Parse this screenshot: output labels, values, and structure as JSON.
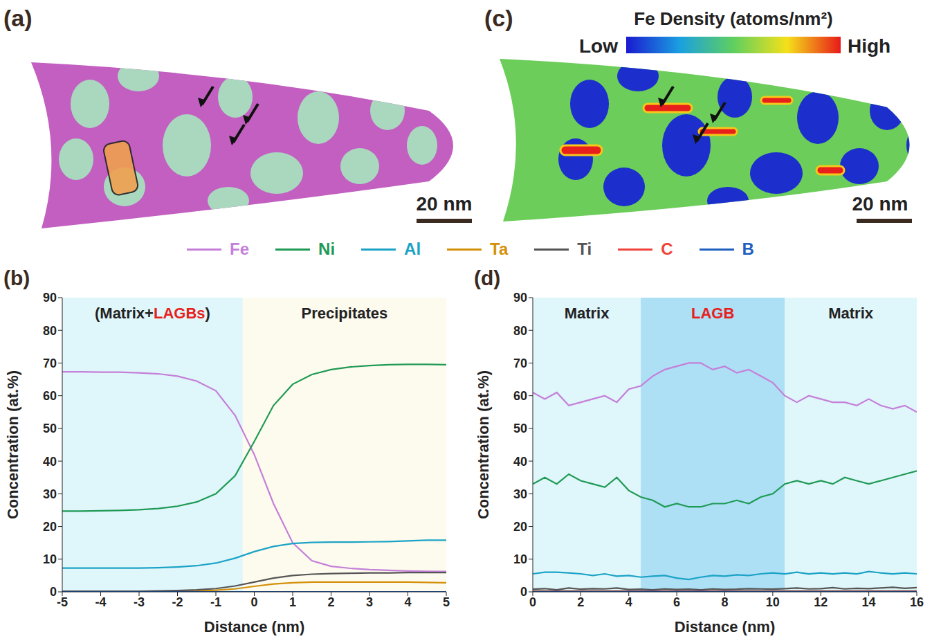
{
  "images": [
    {
      "panel": "(a)",
      "scale_bar": "20 nm"
    },
    {
      "panel": "(c)",
      "colorbar_title": "Fe Density  (atoms/nm²)",
      "colorbar_low": "Low",
      "colorbar_high": "High",
      "scale_bar": "20 nm"
    }
  ],
  "chart_data": [
    {
      "panel": "(b)",
      "type": "line",
      "legend": "top",
      "x_label": "Distance (nm)",
      "y_label": "Concentration (at.%)",
      "xlim": [
        -5,
        5
      ],
      "xticks": [
        -5,
        -4,
        -3,
        -2,
        -1,
        0,
        1,
        2,
        3,
        4,
        5
      ],
      "ylim": [
        0,
        90
      ],
      "yticks": [
        0,
        10,
        20,
        30,
        40,
        50,
        60,
        70,
        80,
        90
      ],
      "regions": [
        {
          "x": [
            -5,
            -0.3
          ],
          "label": "(Matrix+LAGBs)",
          "highlight": "LAGBs",
          "color": "#dff6fb"
        },
        {
          "x": [
            -0.3,
            5
          ],
          "label": "Precipitates",
          "color": "#fdfbee"
        }
      ],
      "x": [
        -5,
        -4.5,
        -4,
        -3.5,
        -3,
        -2.5,
        -2,
        -1.5,
        -1,
        -0.5,
        0,
        0.5,
        1,
        1.5,
        2,
        2.5,
        3,
        3.5,
        4,
        4.5,
        5
      ],
      "series": [
        {
          "name": "Fe",
          "color": "#c57fd8",
          "values": [
            67.3,
            67.3,
            67.2,
            67.2,
            67,
            66.7,
            66,
            64.5,
            61.5,
            54,
            42,
            27,
            15,
            9.5,
            7.8,
            7.2,
            6.8,
            6.6,
            6.4,
            6.3,
            6.2
          ]
        },
        {
          "name": "Ni",
          "color": "#1f9a55",
          "values": [
            24.7,
            24.7,
            24.8,
            24.9,
            25.1,
            25.5,
            26.2,
            27.5,
            30,
            35.5,
            46,
            57,
            63.5,
            66.5,
            68,
            68.8,
            69.2,
            69.5,
            69.6,
            69.6,
            69.5
          ]
        },
        {
          "name": "Al",
          "color": "#1ba3c6",
          "values": [
            7.3,
            7.3,
            7.3,
            7.3,
            7.3,
            7.4,
            7.6,
            8,
            8.8,
            10.3,
            12.3,
            13.9,
            14.8,
            15.1,
            15.2,
            15.2,
            15.3,
            15.4,
            15.6,
            15.8,
            15.8
          ]
        },
        {
          "name": "Ta",
          "color": "#d4900a",
          "values": [
            0.1,
            0.1,
            0.1,
            0.1,
            0.1,
            0.1,
            0.2,
            0.3,
            0.5,
            0.9,
            1.7,
            2.4,
            2.8,
            3,
            3,
            3,
            3,
            3,
            3,
            2.9,
            2.8
          ]
        },
        {
          "name": "Ti",
          "color": "#555555",
          "values": [
            0.2,
            0.2,
            0.2,
            0.2,
            0.2,
            0.3,
            0.4,
            0.6,
            1,
            1.8,
            3,
            4.2,
            5,
            5.4,
            5.6,
            5.7,
            5.8,
            5.8,
            5.9,
            5.9,
            5.9
          ]
        },
        {
          "name": "C",
          "color": "#f0433a",
          "values": [
            0,
            0,
            0,
            0,
            0,
            0,
            0,
            0,
            0,
            0,
            0,
            0,
            0,
            0,
            0,
            0,
            0,
            0,
            0,
            0,
            0
          ]
        },
        {
          "name": "B",
          "color": "#1f5fbf",
          "values": [
            0,
            0,
            0,
            0,
            0,
            0,
            0,
            0,
            0,
            0,
            0,
            0,
            0,
            0,
            0,
            0,
            0,
            0,
            0,
            0,
            0
          ]
        }
      ]
    },
    {
      "panel": "(d)",
      "type": "line",
      "x_label": "Distance (nm)",
      "y_label": "Concentration (at.%)",
      "xlim": [
        0,
        16
      ],
      "xticks": [
        0,
        2,
        4,
        6,
        8,
        10,
        12,
        14,
        16
      ],
      "ylim": [
        0,
        90
      ],
      "yticks": [
        0,
        10,
        20,
        30,
        40,
        50,
        60,
        70,
        80,
        90
      ],
      "regions": [
        {
          "x": [
            0,
            4.5
          ],
          "label": "Matrix",
          "color": "#dff6fb"
        },
        {
          "x": [
            4.5,
            10.5
          ],
          "label": "LAGB",
          "highlight": "LAGB",
          "color": "#addff5"
        },
        {
          "x": [
            10.5,
            16
          ],
          "label": "Matrix",
          "color": "#dff6fb"
        }
      ],
      "x": [
        0,
        0.5,
        1,
        1.5,
        2,
        2.5,
        3,
        3.5,
        4,
        4.5,
        5,
        5.5,
        6,
        6.5,
        7,
        7.5,
        8,
        8.5,
        9,
        9.5,
        10,
        10.5,
        11,
        11.5,
        12,
        12.5,
        13,
        13.5,
        14,
        14.5,
        15,
        15.5,
        16
      ],
      "series": [
        {
          "name": "Fe",
          "color": "#c57fd8",
          "values": [
            61,
            59,
            61,
            57,
            58,
            59,
            60,
            58,
            62,
            63,
            66,
            68,
            69,
            70,
            70,
            68,
            69,
            67,
            68,
            66,
            64,
            60,
            58,
            60,
            59,
            58,
            58,
            57,
            59,
            57,
            56,
            57,
            55
          ]
        },
        {
          "name": "Ni",
          "color": "#1f9a55",
          "values": [
            33,
            35,
            33,
            36,
            34,
            33,
            32,
            35,
            31,
            29,
            28,
            26,
            27,
            26,
            26,
            27,
            27,
            28,
            27,
            29,
            30,
            33,
            34,
            33,
            34,
            33,
            35,
            34,
            33,
            34,
            35,
            36,
            37
          ]
        },
        {
          "name": "Al",
          "color": "#1ba3c6",
          "values": [
            5.5,
            6,
            6,
            5.8,
            5.5,
            5,
            5.5,
            4.8,
            5,
            4.5,
            4.8,
            5,
            4.2,
            3.8,
            4.5,
            5,
            4.8,
            5.2,
            5,
            5.5,
            5.8,
            5.5,
            6,
            5.5,
            5.8,
            5.5,
            5.8,
            5.5,
            6.2,
            5.8,
            5.5,
            5.8,
            5.5
          ]
        },
        {
          "name": "Ta",
          "color": "#d4900a",
          "values": [
            0.3,
            0.3,
            0.3,
            0.3,
            0.3,
            0.3,
            0.3,
            0.3,
            0.3,
            0.3,
            0.3,
            0.3,
            0.3,
            0.3,
            0.3,
            0.3,
            0.3,
            0.3,
            0.3,
            0.3,
            0.3,
            0.3,
            0.3,
            0.3,
            0.3,
            0.3,
            0.3,
            0.3,
            0.3,
            0.3,
            0.3,
            0.3,
            0.3
          ]
        },
        {
          "name": "Ti",
          "color": "#555555",
          "values": [
            0.8,
            1,
            0.6,
            1.2,
            0.8,
            1,
            0.9,
            1.2,
            0.7,
            0.8,
            0.6,
            0.9,
            0.7,
            0.8,
            0.6,
            0.9,
            0.7,
            0.8,
            1,
            0.9,
            0.8,
            1,
            1.2,
            0.9,
            1,
            1.3,
            0.9,
            1.1,
            1,
            1.2,
            1.4,
            1.1,
            1.3
          ]
        },
        {
          "name": "C",
          "color": "#f0433a",
          "values": [
            0.2,
            0.2,
            0.2,
            0.2,
            0.2,
            0.2,
            0.2,
            0.2,
            0.2,
            0.2,
            0.2,
            0.2,
            0.2,
            0.2,
            0.2,
            0.2,
            0.2,
            0.2,
            0.2,
            0.2,
            0.2,
            0.2,
            0.2,
            0.2,
            0.2,
            0.2,
            0.2,
            0.2,
            0.2,
            0.2,
            0.2,
            0.2,
            0.2
          ]
        },
        {
          "name": "B",
          "color": "#1f5fbf",
          "values": [
            0.1,
            0.1,
            0.1,
            0.1,
            0.1,
            0.1,
            0.1,
            0.1,
            0.1,
            0.1,
            0.1,
            0.1,
            0.1,
            0.1,
            0.1,
            0.1,
            0.1,
            0.1,
            0.1,
            0.1,
            0.1,
            0.1,
            0.1,
            0.1,
            0.1,
            0.1,
            0.1,
            0.1,
            0.1,
            0.1,
            0.1,
            0.1,
            0.1
          ]
        }
      ]
    }
  ]
}
